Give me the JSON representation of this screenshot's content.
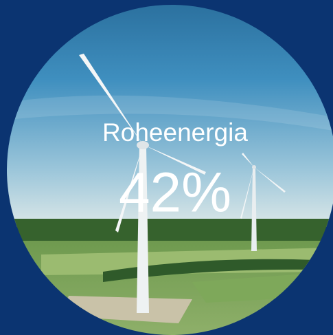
{
  "badge": {
    "label": "Roheenergia",
    "value": "42%"
  }
}
